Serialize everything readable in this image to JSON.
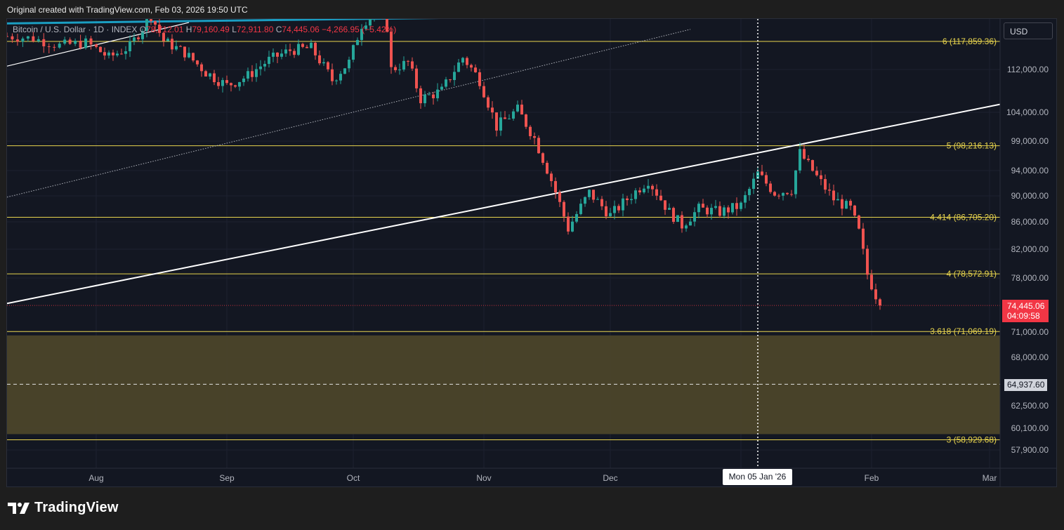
{
  "header": {
    "attribution": "Original created with TradingView.com, Feb 03, 2026 19:50 UTC"
  },
  "symbol": {
    "name": "Bitcoin / U.S. Dollar · 1D · INDEX",
    "o_label": "O",
    "o_value": "78,712.01",
    "h_label": "H",
    "h_value": "79,160.49",
    "l_label": "L",
    "l_value": "72,911.80",
    "c_label": "C",
    "c_value": "74,445.06",
    "change": "−4,266.95 (−5.42%)"
  },
  "currency": "USD",
  "last_price": {
    "price": "74,445.06",
    "countdown": "04:09:58"
  },
  "level_marker": "64,937.60",
  "crosshair_date": "Mon 05 Jan '26",
  "brand": "TradingView",
  "colors": {
    "background": "#131722",
    "up": "#26a69a",
    "down": "#ef5350",
    "fib": "#e8d44d",
    "zone": "#4b442a",
    "trend": "#ffffff",
    "channel": "#1b9ec2"
  },
  "icons": [
    "tradingview-logo-icon"
  ],
  "chart_data": {
    "type": "candlestick",
    "title": "Bitcoin / U.S. Dollar · 1D · INDEX",
    "x_labels": [
      "Aug",
      "Sep",
      "Oct",
      "Nov",
      "Dec",
      "Feb",
      "Mar"
    ],
    "y_ticks": [
      "112,000.00",
      "104,000.00",
      "99,000.00",
      "94,000.00",
      "90,000.00",
      "86,000.00",
      "82,000.00",
      "78,000.00",
      "71,000.00",
      "68,000.00",
      "62,500.00",
      "60,100.00",
      "57,900.00"
    ],
    "y_tick_values": [
      112000,
      104000,
      99000,
      94000,
      90000,
      86000,
      82000,
      78000,
      71000,
      68000,
      62500,
      60100,
      57900
    ],
    "fib_levels": [
      {
        "label": "6 (117,859.36)",
        "value": 117859.36
      },
      {
        "label": "5 (98,216.13)",
        "value": 98216.13
      },
      {
        "label": "4.414 (86,705.20)",
        "value": 86705.2
      },
      {
        "label": "4 (78,572.91)",
        "value": 78572.91
      },
      {
        "label": "3.618 (71,069.19)",
        "value": 71069.19
      },
      {
        "label": "3 (58,929.68)",
        "value": 58929.68
      }
    ],
    "zone": {
      "top": 70600,
      "bottom": 59500
    },
    "dashed_level": 64937.6,
    "last_close": 74445.06,
    "trendlines": [
      {
        "name": "support-trendline",
        "from": [
          "2025-07-15",
          74700
        ],
        "to": [
          "2026-03-05",
          105500
        ],
        "style": "solid"
      },
      {
        "name": "upper-trendline",
        "from": [
          "2025-07-15",
          112700
        ],
        "to": [
          "2025-08-23",
          122000
        ],
        "style": "solid"
      },
      {
        "name": "dotted-trendline",
        "from": [
          "2025-07-15",
          89800
        ],
        "to": [
          "2025-12-20",
          120500
        ],
        "style": "dotted"
      }
    ],
    "price_path": [
      [
        "2025-07-15",
        119000
      ],
      [
        "2025-07-20",
        118500
      ],
      [
        "2025-07-25",
        117000
      ],
      [
        "2025-07-30",
        117600
      ],
      [
        "2025-08-04",
        114500
      ],
      [
        "2025-08-09",
        116800
      ],
      [
        "2025-08-14",
        123500
      ],
      [
        "2025-08-17",
        118000
      ],
      [
        "2025-08-22",
        115500
      ],
      [
        "2025-08-27",
        111500
      ],
      [
        "2025-09-01",
        109000
      ],
      [
        "2025-09-06",
        110800
      ],
      [
        "2025-09-11",
        114000
      ],
      [
        "2025-09-16",
        116000
      ],
      [
        "2025-09-21",
        116500
      ],
      [
        "2025-09-26",
        110000
      ],
      [
        "2025-09-30",
        113500
      ],
      [
        "2025-10-03",
        121500
      ],
      [
        "2025-10-06",
        124500
      ],
      [
        "2025-10-09",
        121000
      ],
      [
        "2025-10-10",
        112000
      ],
      [
        "2025-10-14",
        113500
      ],
      [
        "2025-10-17",
        106500
      ],
      [
        "2025-10-22",
        108000
      ],
      [
        "2025-10-27",
        114500
      ],
      [
        "2025-10-31",
        110000
      ],
      [
        "2025-11-04",
        101500
      ],
      [
        "2025-11-09",
        104500
      ],
      [
        "2025-11-13",
        99500
      ],
      [
        "2025-11-17",
        92500
      ],
      [
        "2025-11-21",
        85000
      ],
      [
        "2025-11-26",
        90500
      ],
      [
        "2025-12-01",
        87000
      ],
      [
        "2025-12-05",
        89500
      ],
      [
        "2025-12-10",
        92500
      ],
      [
        "2025-12-15",
        87500
      ],
      [
        "2025-12-18",
        85500
      ],
      [
        "2025-12-22",
        88000
      ],
      [
        "2025-12-27",
        87500
      ],
      [
        "2026-01-01",
        88500
      ],
      [
        "2026-01-05",
        93500
      ],
      [
        "2026-01-09",
        90500
      ],
      [
        "2026-01-13",
        91000
      ],
      [
        "2026-01-15",
        97000
      ],
      [
        "2026-01-19",
        93000
      ],
      [
        "2026-01-23",
        89500
      ],
      [
        "2026-01-27",
        88000
      ],
      [
        "2026-01-29",
        84500
      ],
      [
        "2026-01-31",
        78500
      ],
      [
        "2026-02-03",
        74445.06
      ]
    ]
  }
}
